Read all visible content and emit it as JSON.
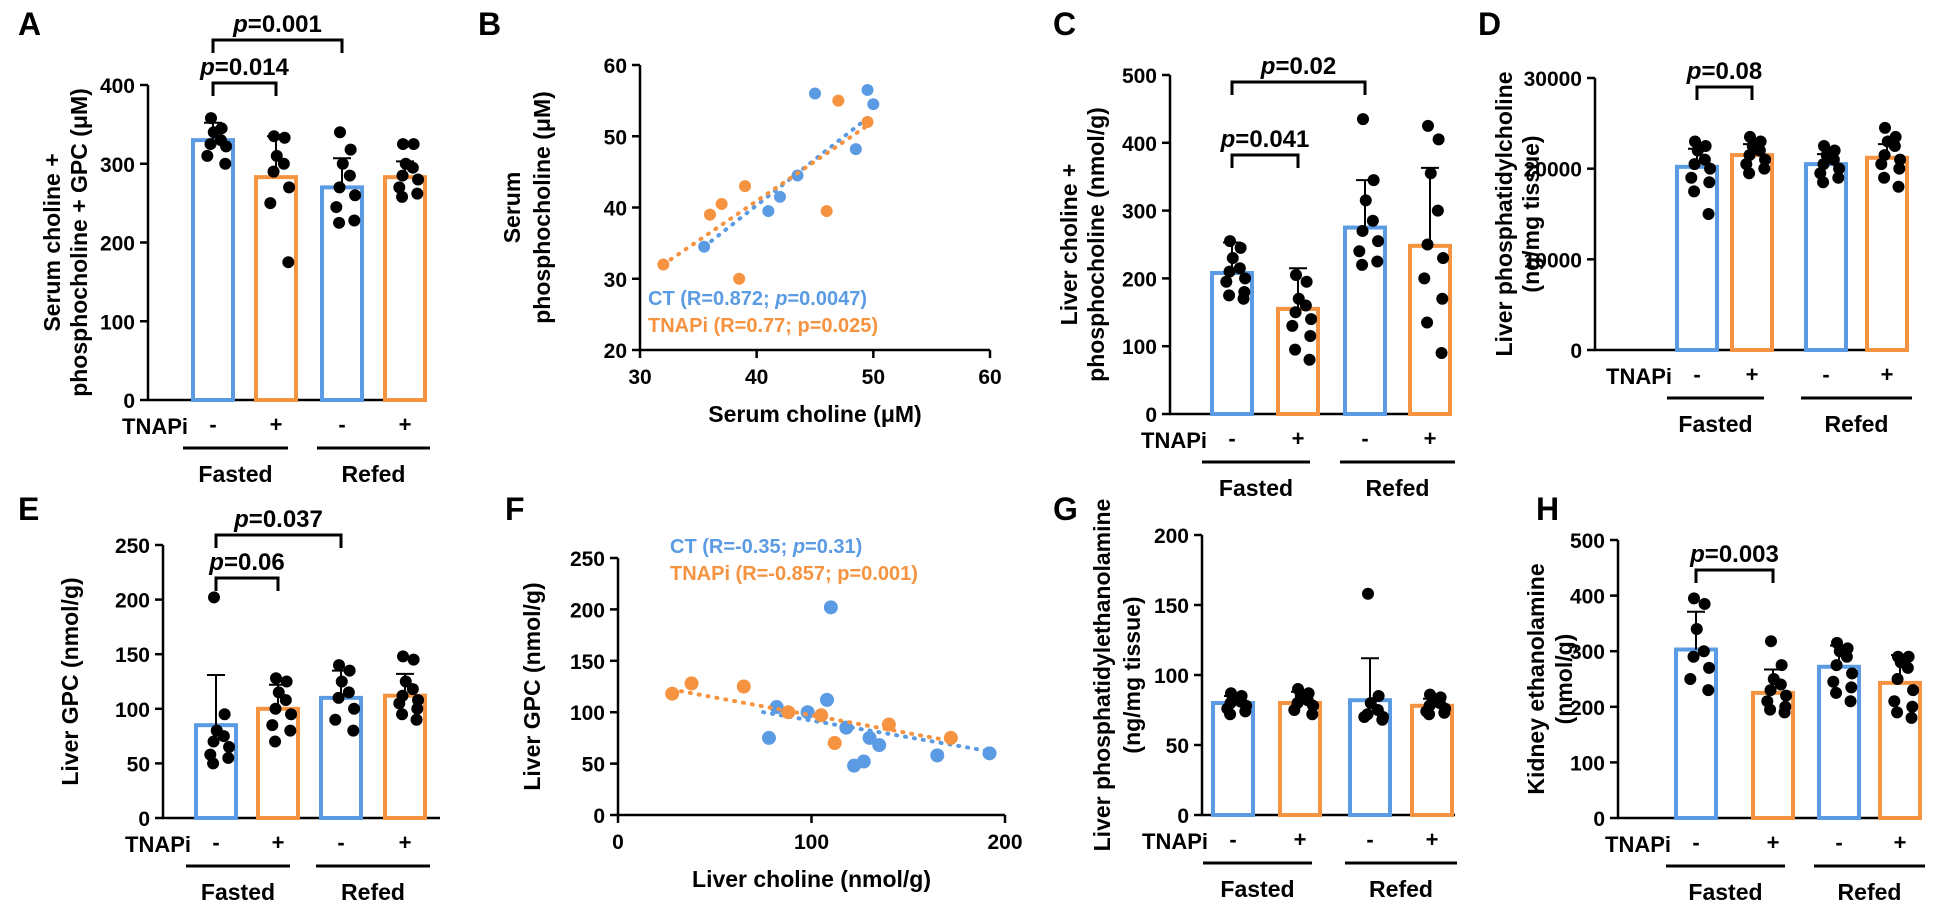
{
  "colors": {
    "ct": "#5b9be3",
    "tnapi": "#f59340",
    "point": "#000000",
    "axis": "#000000"
  },
  "groups": {
    "fasted": "Fasted",
    "refed": "Refed"
  },
  "treatment_label": "TNAPi",
  "signs": [
    "-",
    "+",
    "-",
    "+"
  ],
  "chart_data": [
    {
      "id": "A",
      "type": "bar",
      "panel": "A",
      "ylabel_lines": [
        "Serum choline +",
        "phosphocholine + GPC (μM)"
      ],
      "ylim": [
        0,
        400
      ],
      "ticks": [
        0,
        100,
        200,
        300,
        400
      ],
      "tick_labels": [
        "0",
        "100",
        "200",
        "300",
        "400"
      ],
      "bars": [
        {
          "mean": 330,
          "sd": 22,
          "color": "ct",
          "points": [
            358,
            345,
            340,
            330,
            325,
            322,
            310,
            300
          ]
        },
        {
          "mean": 283,
          "sd": 52,
          "color": "tnapi",
          "points": [
            335,
            333,
            310,
            300,
            290,
            270,
            250,
            175
          ]
        },
        {
          "mean": 270,
          "sd": 37,
          "color": "ct",
          "points": [
            340,
            318,
            300,
            285,
            270,
            260,
            245,
            228,
            225
          ]
        },
        {
          "mean": 283,
          "sd": 20,
          "color": "tnapi",
          "points": [
            325,
            325,
            300,
            295,
            285,
            280,
            270,
            262,
            258
          ]
        }
      ],
      "brackets": [
        {
          "from": 0,
          "to": 1,
          "label": "p=0.014"
        },
        {
          "from": 0,
          "to": 2,
          "label": "p=0.001"
        }
      ]
    },
    {
      "id": "B",
      "type": "scatter",
      "panel": "B",
      "xlabel": "Serum choline (μM)",
      "ylabel_lines": [
        "Serum",
        "phosphocholine (μM)"
      ],
      "xlim": [
        30,
        60
      ],
      "ylim": [
        20,
        60
      ],
      "xticks": [
        30,
        40,
        50,
        60
      ],
      "xtick_labels": [
        "30",
        "40",
        "50",
        "60"
      ],
      "yticks": [
        20,
        30,
        40,
        50,
        60
      ],
      "ytick_labels": [
        "20",
        "30",
        "40",
        "50",
        "60"
      ],
      "point_radius": 6,
      "series": [
        {
          "name": "CT",
          "color": "ct",
          "stat": "R=0.872; ",
          "p": "p=0.0047",
          "points": [
            [
              35.5,
              34.5
            ],
            [
              41,
              39.5
            ],
            [
              42,
              41.5
            ],
            [
              43.5,
              44.5
            ],
            [
              45,
              56
            ],
            [
              48.5,
              48.2
            ],
            [
              49.5,
              56.5
            ],
            [
              50,
              54.5
            ]
          ],
          "fit": [
            [
              35.5,
              34.5
            ],
            [
              50,
              53.2
            ]
          ]
        },
        {
          "name": "TNAPi",
          "color": "tnapi",
          "stat": "R=0.77; p=0.025",
          "p": "",
          "points": [
            [
              32,
              32
            ],
            [
              36,
              39
            ],
            [
              37,
              40.5
            ],
            [
              38.5,
              30
            ],
            [
              39,
              43
            ],
            [
              46,
              39.5
            ],
            [
              47,
              55
            ],
            [
              49.5,
              52
            ]
          ],
          "fit": [
            [
              32,
              32
            ],
            [
              49.5,
              51.5
            ]
          ]
        }
      ]
    },
    {
      "id": "C",
      "type": "bar",
      "panel": "C",
      "ylabel_lines": [
        "Liver choline +",
        "phosphocholine (nmol/g)"
      ],
      "ylim": [
        0,
        500
      ],
      "ticks": [
        0,
        100,
        200,
        300,
        400,
        500
      ],
      "tick_labels": [
        "0",
        "100",
        "200",
        "300",
        "400",
        "500"
      ],
      "bars": [
        {
          "mean": 208,
          "sd": 45,
          "color": "ct",
          "points": [
            255,
            245,
            230,
            215,
            210,
            200,
            195,
            180,
            175,
            170
          ]
        },
        {
          "mean": 155,
          "sd": 60,
          "color": "tnapi",
          "points": [
            205,
            195,
            170,
            160,
            150,
            140,
            130,
            115,
            95,
            80
          ]
        },
        {
          "mean": 275,
          "sd": 70,
          "color": "ct",
          "points": [
            435,
            345,
            315,
            285,
            270,
            255,
            240,
            225,
            220
          ]
        },
        {
          "mean": 248,
          "sd": 115,
          "color": "tnapi",
          "points": [
            425,
            405,
            355,
            300,
            250,
            230,
            200,
            170,
            135,
            90
          ]
        }
      ],
      "brackets": [
        {
          "from": 0,
          "to": 1,
          "label": "p=0.041"
        },
        {
          "from": 0,
          "to": 2,
          "label": "p=0.02"
        }
      ]
    },
    {
      "id": "D",
      "type": "bar",
      "panel": "D",
      "ylabel_lines": [
        "Liver phosphatidylcholine",
        "(ng/mg tissue)"
      ],
      "ylim": [
        0,
        30000
      ],
      "ticks": [
        0,
        10000,
        20000,
        30000
      ],
      "tick_labels": [
        "0",
        "10000",
        "20000",
        "30000"
      ],
      "bars": [
        {
          "mean": 20200,
          "sd": 2000,
          "color": "ct",
          "points": [
            23000,
            22500,
            22000,
            21000,
            20500,
            20000,
            19000,
            18500,
            17500,
            15000
          ]
        },
        {
          "mean": 21500,
          "sd": 1200,
          "color": "tnapi",
          "points": [
            23500,
            23000,
            22500,
            22000,
            21500,
            21000,
            20500,
            20000,
            19500
          ]
        },
        {
          "mean": 20500,
          "sd": 1100,
          "color": "ct",
          "points": [
            22500,
            22000,
            21500,
            21000,
            20500,
            20000,
            19500,
            19000,
            18500
          ]
        },
        {
          "mean": 21200,
          "sd": 1500,
          "color": "tnapi",
          "points": [
            24500,
            23500,
            23000,
            22500,
            21500,
            21000,
            20500,
            20000,
            19000,
            18000
          ]
        }
      ],
      "brackets": [
        {
          "from": 0,
          "to": 1,
          "label": "p=0.08"
        }
      ]
    },
    {
      "id": "E",
      "type": "bar",
      "panel": "E",
      "ylabel_lines": [
        "Liver GPC (nmol/g)"
      ],
      "ylim": [
        0,
        250
      ],
      "ticks": [
        0,
        50,
        100,
        150,
        200,
        250
      ],
      "tick_labels": [
        "0",
        "50",
        "100",
        "150",
        "200",
        "250"
      ],
      "bars": [
        {
          "mean": 85,
          "sd": 46,
          "color": "ct",
          "points": [
            202,
            95,
            80,
            75,
            70,
            65,
            58,
            55,
            50
          ]
        },
        {
          "mean": 100,
          "sd": 22,
          "color": "tnapi",
          "points": [
            128,
            125,
            115,
            108,
            100,
            95,
            85,
            80,
            70
          ]
        },
        {
          "mean": 110,
          "sd": 25,
          "color": "ct",
          "points": [
            140,
            135,
            125,
            115,
            110,
            100,
            90,
            80
          ]
        },
        {
          "mean": 112,
          "sd": 20,
          "color": "tnapi",
          "points": [
            148,
            145,
            125,
            118,
            112,
            108,
            105,
            100,
            95,
            90
          ]
        }
      ],
      "brackets": [
        {
          "from": 0,
          "to": 1,
          "label": "p=0.06"
        },
        {
          "from": 0,
          "to": 2,
          "label": "p=0.037"
        }
      ]
    },
    {
      "id": "F",
      "type": "scatter",
      "panel": "F",
      "xlabel": "Liver choline (nmol/g)",
      "ylabel_lines": [
        "Liver GPC (nmol/g)"
      ],
      "xlim": [
        0,
        200
      ],
      "ylim": [
        0,
        250
      ],
      "xticks": [
        0,
        100,
        200
      ],
      "xtick_labels": [
        "0",
        "100",
        "200"
      ],
      "yticks": [
        0,
        50,
        100,
        150,
        200,
        250
      ],
      "ytick_labels": [
        "0",
        "50",
        "100",
        "150",
        "200",
        "250"
      ],
      "point_radius": 7,
      "series": [
        {
          "name": "CT",
          "color": "ct",
          "stat": "R=-0.35; ",
          "p": "p=0.31",
          "points": [
            [
              78,
              75
            ],
            [
              82,
              105
            ],
            [
              98,
              100
            ],
            [
              108,
              112
            ],
            [
              110,
              202
            ],
            [
              118,
              85
            ],
            [
              122,
              48
            ],
            [
              127,
              52
            ],
            [
              130,
              75
            ],
            [
              135,
              68
            ],
            [
              165,
              58
            ],
            [
              192,
              60
            ]
          ],
          "fit": [
            [
              75,
              100
            ],
            [
              192,
              62
            ]
          ]
        },
        {
          "name": "TNAPi",
          "color": "tnapi",
          "stat": "R=-0.857; p=0.001",
          "p": "",
          "points": [
            [
              28,
              118
            ],
            [
              38,
              128
            ],
            [
              65,
              125
            ],
            [
              88,
              100
            ],
            [
              105,
              97
            ],
            [
              112,
              70
            ],
            [
              140,
              88
            ],
            [
              172,
              75
            ]
          ],
          "fit": [
            [
              28,
              122
            ],
            [
              172,
              72
            ]
          ]
        }
      ]
    },
    {
      "id": "G",
      "type": "bar",
      "panel": "G",
      "ylabel_lines": [
        "Liver phosphatidylethanolamine",
        "(ng/mg tissue)"
      ],
      "ylim": [
        0,
        200
      ],
      "ticks": [
        0,
        50,
        100,
        150,
        200
      ],
      "tick_labels": [
        "0",
        "50",
        "100",
        "150",
        "200"
      ],
      "bars": [
        {
          "mean": 80,
          "sd": 5,
          "color": "ct",
          "points": [
            87,
            85,
            83,
            81,
            80,
            78,
            76,
            74,
            72
          ]
        },
        {
          "mean": 80,
          "sd": 8,
          "color": "tnapi",
          "points": [
            90,
            87,
            85,
            82,
            80,
            78,
            75,
            72
          ]
        },
        {
          "mean": 82,
          "sd": 30,
          "color": "ct",
          "points": [
            158,
            85,
            80,
            75,
            72,
            70,
            70,
            68
          ]
        },
        {
          "mean": 78,
          "sd": 5,
          "color": "tnapi",
          "points": [
            86,
            84,
            82,
            80,
            78,
            76,
            74,
            73,
            72
          ]
        }
      ],
      "brackets": []
    },
    {
      "id": "H",
      "type": "bar",
      "panel": "H",
      "ylabel_lines": [
        "Kidney ethanolamine",
        "(nmol/g)"
      ],
      "ylim": [
        0,
        500
      ],
      "ticks": [
        0,
        100,
        200,
        300,
        400,
        500
      ],
      "tick_labels": [
        "0",
        "100",
        "200",
        "300",
        "400",
        "500"
      ],
      "bars": [
        {
          "mean": 303,
          "sd": 68,
          "color": "ct",
          "points": [
            395,
            385,
            340,
            300,
            290,
            270,
            250,
            230
          ]
        },
        {
          "mean": 225,
          "sd": 42,
          "color": "tnapi",
          "points": [
            318,
            275,
            250,
            240,
            230,
            220,
            210,
            200,
            195,
            190
          ]
        },
        {
          "mean": 272,
          "sd": 38,
          "color": "ct",
          "points": [
            315,
            305,
            300,
            290,
            275,
            260,
            245,
            235,
            225,
            210
          ]
        },
        {
          "mean": 243,
          "sd": 50,
          "color": "tnapi",
          "points": [
            290,
            290,
            280,
            270,
            250,
            230,
            210,
            200,
            190,
            180
          ]
        }
      ],
      "brackets": [
        {
          "from": 0,
          "to": 1,
          "label": "p=0.003"
        }
      ]
    }
  ]
}
